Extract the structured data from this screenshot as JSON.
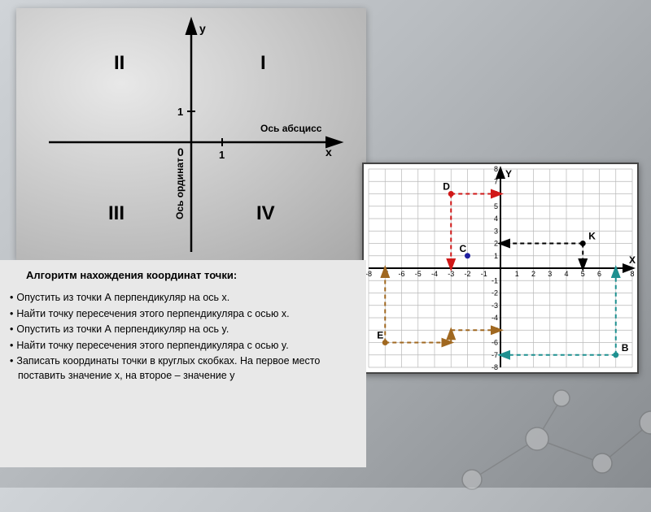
{
  "top_diagram": {
    "type": "infographic",
    "y_label": "y",
    "x_label": "x",
    "x_axis_name": "Ось абсцисс",
    "y_axis_name": "Ось ординат",
    "origin_label": "0",
    "unit_x": "1",
    "unit_y": "1",
    "quadrants": {
      "q1": "I",
      "q2": "II",
      "q3": "III",
      "q4": "IV"
    },
    "axis_color": "#000000",
    "label_color": "#000000",
    "font_size_quadrant": 22,
    "font_size_axis": 13,
    "font_size_small": 12
  },
  "right_diagram": {
    "type": "scatter",
    "xlim": [
      -8,
      8
    ],
    "ylim": [
      -8,
      8
    ],
    "xtick_step": 1,
    "ytick_step": 1,
    "background_color": "#ffffff",
    "grid_color": "#b8b8b8",
    "axis_color": "#000000",
    "axis_label_x": "X",
    "axis_label_y": "Y",
    "label_fontsize": 12,
    "tick_fontsize": 9,
    "points": {
      "D": {
        "x": -3,
        "y": 6,
        "color": "#d01818",
        "label": "D"
      },
      "C": {
        "x": -2,
        "y": 1,
        "color": "#2020a0",
        "label": "C"
      },
      "K": {
        "x": 5,
        "y": 2,
        "color": "#000000",
        "label": "K"
      },
      "E": {
        "x": -7,
        "y": -6,
        "color": "#a06820",
        "label": "E"
      },
      "B": {
        "x": 7,
        "y": -7,
        "color": "#1e9090",
        "label": "B"
      }
    },
    "arrows": [
      {
        "from": [
          -3,
          6
        ],
        "to": [
          0,
          6
        ],
        "color": "#d01818"
      },
      {
        "from": [
          -3,
          6
        ],
        "to": [
          -3,
          0
        ],
        "color": "#d01818"
      },
      {
        "from": [
          5,
          2
        ],
        "to": [
          0,
          2
        ],
        "color": "#000000"
      },
      {
        "from": [
          5,
          2
        ],
        "to": [
          5,
          0
        ],
        "color": "#000000"
      },
      {
        "from": [
          -7,
          -6
        ],
        "to": [
          -7,
          0
        ],
        "color": "#a06820"
      },
      {
        "from": [
          -7,
          -6
        ],
        "to": [
          -3,
          -6
        ],
        "color": "#a06820"
      },
      {
        "from": [
          -3,
          -6
        ],
        "to": [
          -3,
          -5
        ],
        "color": "#a06820"
      },
      {
        "from": [
          -3,
          -5
        ],
        "to": [
          0,
          -5
        ],
        "color": "#a06820"
      },
      {
        "from": [
          7,
          -7
        ],
        "to": [
          0,
          -7
        ],
        "color": "#1e9090"
      },
      {
        "from": [
          7,
          -7
        ],
        "to": [
          7,
          0
        ],
        "color": "#1e9090"
      }
    ],
    "dash_pattern": "5,4",
    "arrow_line_width": 2
  },
  "text_panel": {
    "title": "Алгоритм нахождения координат точки:",
    "items": [
      "Опустить из точки А перпендикуляр на ось x.",
      "Найти точку пересечения этого перпендикуляра с осью x.",
      "Опустить из точки А перпендикуляр на ось y.",
      "Найти точку пересечения этого перпендикуляра с осью y.",
      "Записать координаты точки в круглых скобках. На первое место поставить значение x, на второе – значение y"
    ],
    "title_fontsize": 13,
    "item_fontsize": 12.5,
    "text_color": "#000000",
    "background_color": "#e8e8e8"
  }
}
